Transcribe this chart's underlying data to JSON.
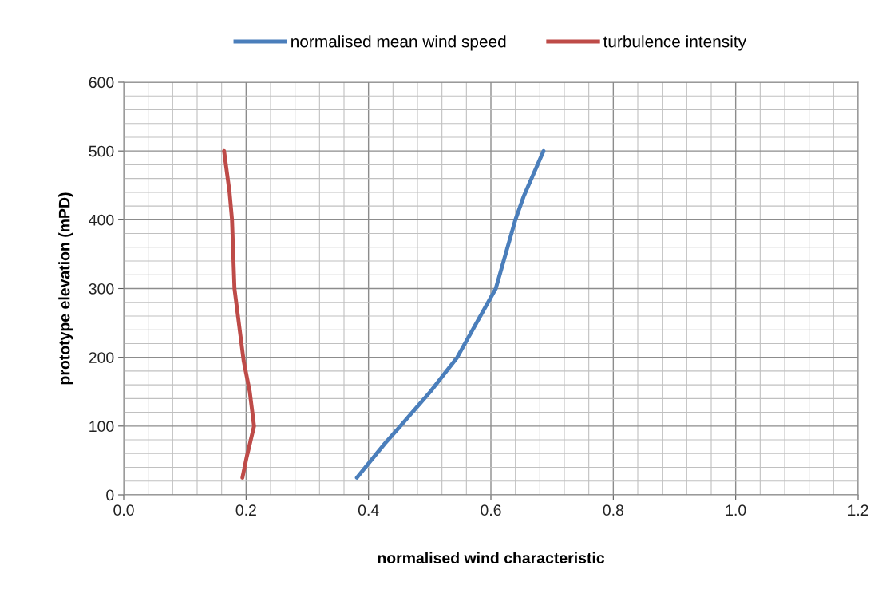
{
  "chart_data": {
    "type": "line",
    "xlabel": "normalised wind characteristic",
    "ylabel": "prototype elevation (mPD)",
    "xlim": [
      0,
      1.2
    ],
    "xticks": [
      {
        "value": 0,
        "label": "0.0"
      },
      0.2,
      0.4,
      0.6,
      0.8,
      {
        "value": 1,
        "label": "1.0"
      },
      1.2
    ],
    "ylim": [
      0,
      600
    ],
    "yticks": [
      0,
      100,
      200,
      300,
      400,
      500,
      600
    ],
    "grid": true,
    "legend": "top",
    "marker": "none",
    "line_style": "solid",
    "series": [
      {
        "name": "normalised mean wind speed",
        "color": "#4a7ebb",
        "x": [
          0.381,
          0.427,
          0.452,
          0.501,
          0.545,
          0.608,
          0.64,
          0.654,
          0.686
        ],
        "values": [
          25,
          75,
          100,
          150,
          200,
          300,
          400,
          435,
          500
        ]
      },
      {
        "name": "turbulence intensity",
        "color": "#be4b48",
        "x": [
          0.194,
          0.201,
          0.213,
          0.206,
          0.196,
          0.181,
          0.177,
          0.173,
          0.164
        ],
        "values": [
          25,
          55,
          100,
          150,
          195,
          300,
          400,
          440,
          500
        ]
      }
    ]
  }
}
